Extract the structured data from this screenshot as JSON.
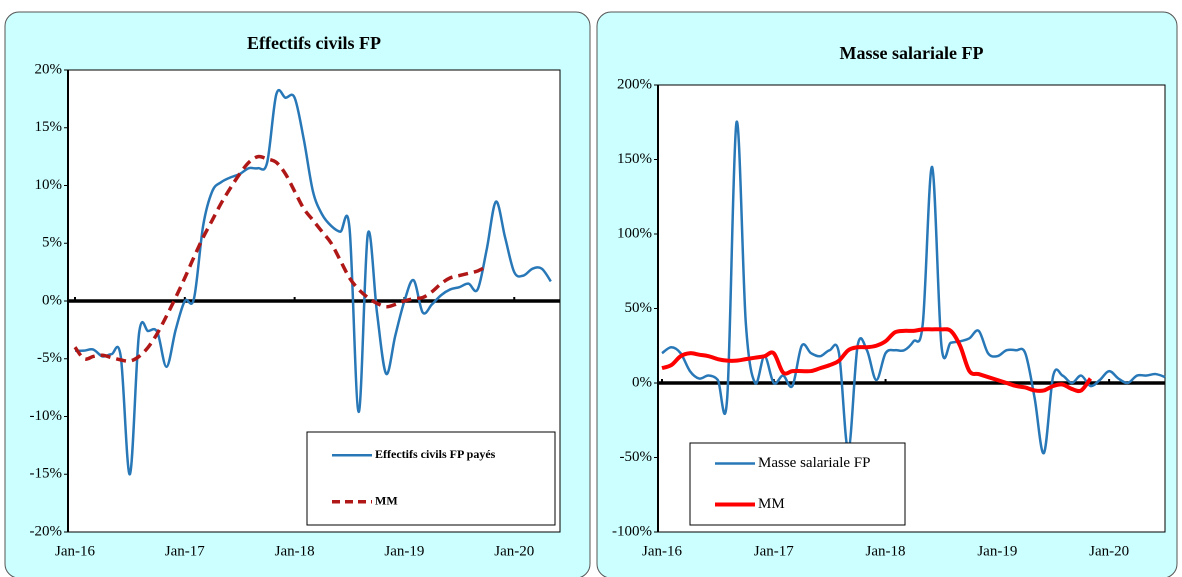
{
  "chart_data": [
    {
      "type": "line",
      "title": "Effectifs civils FP",
      "x": [
        "2016-01",
        "2016-02",
        "2016-03",
        "2016-04",
        "2016-05",
        "2016-06",
        "2016-07",
        "2016-08",
        "2016-09",
        "2016-10",
        "2016-11",
        "2016-12",
        "2017-01",
        "2017-02",
        "2017-03",
        "2017-04",
        "2017-05",
        "2017-06",
        "2017-07",
        "2017-08",
        "2017-09",
        "2017-10",
        "2017-11",
        "2017-12",
        "2018-01",
        "2018-02",
        "2018-03",
        "2018-04",
        "2018-05",
        "2018-06",
        "2018-07",
        "2018-08",
        "2018-09",
        "2018-10",
        "2018-11",
        "2018-12",
        "2019-01",
        "2019-02",
        "2019-03",
        "2019-04",
        "2019-05",
        "2019-06",
        "2019-07",
        "2019-08",
        "2019-09",
        "2019-10",
        "2019-11",
        "2019-12",
        "2020-01",
        "2020-02",
        "2020-03",
        "2020-04",
        "2020-05"
      ],
      "series": [
        {
          "name": "Effectifs civils FP payés",
          "color": "#2878b8",
          "dash": false,
          "values": [
            -4.3,
            -4.3,
            -4.2,
            -4.8,
            -4.6,
            -4.8,
            -15,
            -2.8,
            -2.6,
            -2.7,
            -5.7,
            -2.5,
            0.0,
            0.2,
            6.5,
            9.5,
            10.3,
            10.7,
            11.0,
            11.5,
            11.5,
            12.0,
            17.9,
            17.6,
            17.6,
            14.0,
            9.5,
            7.5,
            6.5,
            6.0,
            6.3,
            -9.6,
            5.8,
            -1.0,
            -6.3,
            -3.0,
            0.0,
            1.8,
            -1.0,
            -0.3,
            0.5,
            1.0,
            1.2,
            1.5,
            1.0,
            4.5,
            8.6,
            5.5,
            2.5,
            2.2,
            2.8,
            2.8,
            1.7
          ]
        },
        {
          "name": "MM",
          "color": "#b01818",
          "dash": true,
          "values": [
            -4.0,
            -5.0,
            -4.8,
            -4.7,
            -4.9,
            -5.1,
            -5.2,
            -4.8,
            -4.0,
            -2.8,
            -1.3,
            0.3,
            2.0,
            3.8,
            5.5,
            7.0,
            8.5,
            9.8,
            11.0,
            12.0,
            12.5,
            12.3,
            12.0,
            11.0,
            9.5,
            8.0,
            7.0,
            6.0,
            5.0,
            3.5,
            2.0,
            1.0,
            0.3,
            -0.2,
            -0.5,
            -0.3,
            0.0,
            0.2,
            0.3,
            0.8,
            1.5,
            2.0,
            2.2,
            2.4,
            2.6,
            3.0,
            null,
            null,
            null,
            null,
            null,
            null,
            null
          ]
        }
      ],
      "xlim": [
        "2016-01",
        "2020-06"
      ],
      "xticks": [
        {
          "value": "2016-01",
          "label": "Jan-16"
        },
        {
          "value": "2017-01",
          "label": "Jan-17"
        },
        {
          "value": "2018-01",
          "label": "Jan-18"
        },
        {
          "value": "2019-01",
          "label": "Jan-19"
        },
        {
          "value": "2020-01",
          "label": "Jan-20"
        }
      ],
      "ylim": [
        -20,
        20
      ],
      "yticks": [
        {
          "value": -20,
          "label": "-20%"
        },
        {
          "value": -15,
          "label": "-15%"
        },
        {
          "value": -10,
          "label": "-10%"
        },
        {
          "value": -5,
          "label": "-5%"
        },
        {
          "value": 0,
          "label": "0%"
        },
        {
          "value": 5,
          "label": "5%"
        },
        {
          "value": 10,
          "label": "10%"
        },
        {
          "value": 15,
          "label": "15%"
        },
        {
          "value": 20,
          "label": "20%"
        }
      ],
      "legend": "lower right",
      "grid": false
    },
    {
      "type": "line",
      "title": "Masse salariale FP",
      "x": [
        "2016-01",
        "2016-02",
        "2016-03",
        "2016-04",
        "2016-05",
        "2016-06",
        "2016-07",
        "2016-08",
        "2016-09",
        "2016-10",
        "2016-11",
        "2016-12",
        "2017-01",
        "2017-02",
        "2017-03",
        "2017-04",
        "2017-05",
        "2017-06",
        "2017-07",
        "2017-08",
        "2017-09",
        "2017-10",
        "2017-11",
        "2017-12",
        "2018-01",
        "2018-02",
        "2018-03",
        "2018-04",
        "2018-05",
        "2018-06",
        "2018-07",
        "2018-08",
        "2018-09",
        "2018-10",
        "2018-11",
        "2018-12",
        "2019-01",
        "2019-02",
        "2019-03",
        "2019-04",
        "2019-05",
        "2019-06",
        "2019-07",
        "2019-08",
        "2019-09",
        "2019-10",
        "2019-11",
        "2019-12",
        "2020-01",
        "2020-02",
        "2020-03",
        "2020-04",
        "2020-05",
        "2020-06",
        "2020-07"
      ],
      "series": [
        {
          "name": "Masse salariale FP",
          "color": "#2878b8",
          "dash": false,
          "values": [
            20,
            24,
            20,
            8,
            3,
            5,
            2,
            -10,
            175,
            40,
            0,
            18,
            0,
            5,
            -2,
            25,
            20,
            18,
            22,
            20,
            -45,
            25,
            22,
            2,
            20,
            22,
            22,
            28,
            40,
            145,
            25,
            27,
            28,
            30,
            35,
            20,
            18,
            22,
            22,
            20,
            -10,
            -47,
            5,
            5,
            0,
            5,
            -2,
            2,
            8,
            3,
            0,
            5,
            5,
            6,
            4
          ]
        },
        {
          "name": "MM",
          "color": "#ff0000",
          "dash": false,
          "values": [
            10,
            12,
            18,
            20,
            19,
            18,
            16,
            15,
            15,
            16,
            17,
            18,
            20,
            7,
            8,
            8,
            8,
            10,
            12,
            15,
            22,
            24,
            24,
            25,
            28,
            34,
            35,
            35,
            36,
            36,
            36,
            35,
            25,
            8,
            6,
            4,
            2,
            0,
            -2,
            -3,
            -5,
            -5,
            -2,
            -1,
            -4,
            -5,
            3,
            null,
            null,
            null,
            null,
            null,
            null,
            null,
            null
          ]
        }
      ],
      "xlim": [
        "2016-01",
        "2020-07"
      ],
      "xticks": [
        {
          "value": "2016-01",
          "label": "Jan-16"
        },
        {
          "value": "2017-01",
          "label": "Jan-17"
        },
        {
          "value": "2018-01",
          "label": "Jan-18"
        },
        {
          "value": "2019-01",
          "label": "Jan-19"
        },
        {
          "value": "2020-01",
          "label": "Jan-20"
        }
      ],
      "ylim": [
        -100,
        200
      ],
      "yticks": [
        {
          "value": -100,
          "label": "-100%"
        },
        {
          "value": -50,
          "label": "-50%"
        },
        {
          "value": 0,
          "label": "0%"
        },
        {
          "value": 50,
          "label": "50%"
        },
        {
          "value": 100,
          "label": "100%"
        },
        {
          "value": 150,
          "label": "150%"
        },
        {
          "value": 200,
          "label": "200%"
        }
      ],
      "legend": "lower left",
      "grid": false
    }
  ]
}
